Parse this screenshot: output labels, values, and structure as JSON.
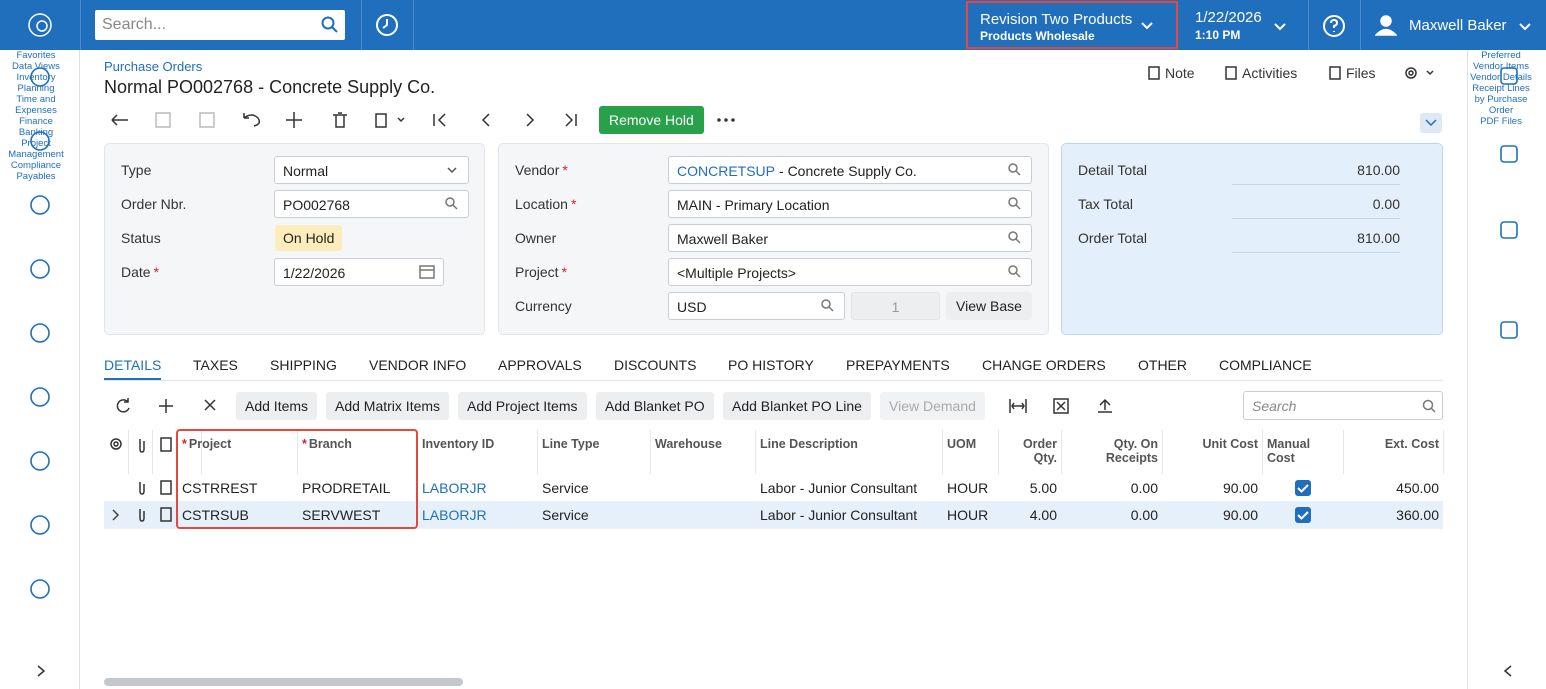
{
  "topbar": {
    "search_placeholder": "Search...",
    "company": "Revision Two Products",
    "branch": "Products Wholesale",
    "date": "1/22/2026",
    "time": "1:10 PM",
    "user": "Maxwell Baker"
  },
  "left_nav": [
    "Favorites",
    "Data Views",
    "Inventory Planning",
    "Time and Expenses",
    "Finance",
    "Banking",
    "Project Management",
    "Compliance",
    "Payables"
  ],
  "right_nav": [
    "Preferred Vendor Items",
    "Vendor Details",
    "Receipt Lines by Purchase Order",
    "PDF Files"
  ],
  "header": {
    "breadcrumb": "Purchase Orders",
    "title": "Normal PO002768 - Concrete Supply Co.",
    "actions": [
      "Note",
      "Activities",
      "Files"
    ]
  },
  "toolbar": {
    "primary": "Remove Hold"
  },
  "summary_left": [
    {
      "label": "Type",
      "value": "Normal"
    },
    {
      "label": "Order Nbr.",
      "value": "PO002768"
    },
    {
      "label": "Status",
      "value": "On Hold"
    },
    {
      "label": "Date",
      "mark": "*",
      "value": "1/22/2026"
    }
  ],
  "summary_mid": [
    {
      "label": "Vendor",
      "mark": "*",
      "link": "CONCRETSUP",
      "value": "- Concrete Supply Co."
    },
    {
      "label": "Location",
      "mark": "*",
      "value": "MAIN - Primary Location"
    },
    {
      "label": "Owner",
      "value": "Maxwell Baker"
    },
    {
      "label": "Project",
      "mark": "*",
      "value": "<Multiple Projects>"
    },
    {
      "label": "Currency",
      "value": "USD",
      "rate": "1",
      "button": "View Base"
    }
  ],
  "totals": [
    {
      "label": "Detail Total",
      "value": "810.00"
    },
    {
      "label": "Tax Total",
      "value": "0.00"
    },
    {
      "label": "Order Total",
      "value": "810.00"
    }
  ],
  "tabs": [
    "DETAILS",
    "TAXES",
    "SHIPPING",
    "VENDOR INFO",
    "APPROVALS",
    "DISCOUNTS",
    "PO HISTORY",
    "PREPAYMENTS",
    "CHANGE ORDERS",
    "OTHER",
    "COMPLIANCE"
  ],
  "active_tab": 0,
  "grid_toolbar": {
    "buttons": [
      {
        "label": "Add Items"
      },
      {
        "label": "Add Matrix Items"
      },
      {
        "label": "Add Project Items"
      },
      {
        "label": "Add Blanket PO"
      },
      {
        "label": "Add Blanket PO Line"
      },
      {
        "label": "View Demand",
        "disabled": true
      }
    ],
    "search_placeholder": "Search"
  },
  "grid": {
    "columns": [
      {
        "label": "Project",
        "mark": "*"
      },
      {
        "label": "Branch",
        "mark": "*"
      },
      {
        "label": "Inventory ID"
      },
      {
        "label": "Line Type"
      },
      {
        "label": "Warehouse"
      },
      {
        "label": "Line Description"
      },
      {
        "label": "UOM"
      },
      {
        "label": "Order Qty."
      },
      {
        "label": "Qty. On Receipts"
      },
      {
        "label": "Unit Cost"
      },
      {
        "label": "Manual Cost"
      },
      {
        "label": "Ext. Cost"
      }
    ],
    "rows": [
      [
        "CSTRREST",
        "PRODRETAIL",
        "LABORJR",
        "Service",
        null,
        "Labor - Junior Consultant",
        "HOUR",
        "5.00",
        "0.00",
        "90.00",
        true,
        "450.00"
      ],
      [
        "CSTRSUB",
        "SERVWEST",
        "LABORJR",
        "Service",
        null,
        "Labor - Junior Consultant",
        "HOUR",
        "4.00",
        "0.00",
        "90.00",
        true,
        "360.00"
      ]
    ],
    "selected_row": 1
  }
}
